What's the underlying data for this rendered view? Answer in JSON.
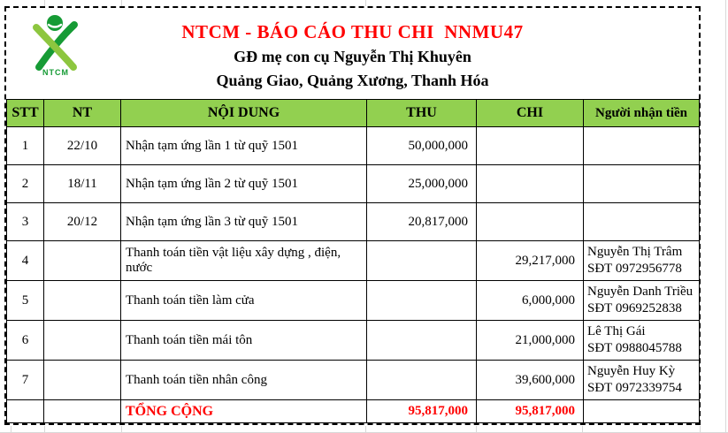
{
  "logo": {
    "label": "NTCM",
    "green_dark": "#169b35",
    "green_light": "#8dc63f"
  },
  "header": {
    "title": "NTCM - BÁO CÁO THU CHI  NNMU47",
    "subtitle_family": "GĐ mẹ con cụ Nguyễn Thị Khuyên",
    "subtitle_address": "Quảng Giao, Quảng Xương, Thanh Hóa"
  },
  "colors": {
    "header_green": "#92d050",
    "accent_red": "#ff0000"
  },
  "table": {
    "columns": [
      "STT",
      "NT",
      "NỘI DUNG",
      "THU",
      "CHI",
      "Người nhận tiền"
    ],
    "rows": [
      {
        "stt": "1",
        "nt": "22/10",
        "noi_dung": "Nhận tạm ứng lần 1 từ quỹ 1501",
        "thu": "50,000,000",
        "chi": "",
        "recipient_name": "",
        "recipient_phone": ""
      },
      {
        "stt": "2",
        "nt": "18/11",
        "noi_dung": "Nhận tạm ứng lần 2 từ quỹ 1501",
        "thu": "25,000,000",
        "chi": "",
        "recipient_name": "",
        "recipient_phone": ""
      },
      {
        "stt": "3",
        "nt": "20/12",
        "noi_dung": "Nhận tạm ứng lần 3 từ quỹ 1501",
        "thu": "20,817,000",
        "chi": "",
        "recipient_name": "",
        "recipient_phone": ""
      },
      {
        "stt": "4",
        "nt": "",
        "noi_dung": "Thanh toán tiền vật liệu xây dựng , điện, nước",
        "thu": "",
        "chi": "29,217,000",
        "recipient_name": "Nguyễn Thị Trâm",
        "recipient_phone": "SĐT 0972956778"
      },
      {
        "stt": "5",
        "nt": "",
        "noi_dung": "Thanh toán tiền làm cửa",
        "thu": "",
        "chi": "6,000,000",
        "recipient_name": "Nguyễn Danh Triều",
        "recipient_phone": "SĐT 0969252838"
      },
      {
        "stt": "6",
        "nt": "",
        "noi_dung": "Thanh toán tiền mái tôn",
        "thu": "",
        "chi": "21,000,000",
        "recipient_name": "Lê Thị Gái",
        "recipient_phone": "SĐT 0988045788"
      },
      {
        "stt": "7",
        "nt": "",
        "noi_dung": "Thanh toán tiền nhân công",
        "thu": "",
        "chi": "39,600,000",
        "recipient_name": "Nguyễn Huy Kỳ",
        "recipient_phone": "SĐT 0972339754"
      }
    ],
    "total": {
      "label": "TỔNG CỘNG",
      "thu": "95,817,000",
      "chi": "95,817,000"
    }
  }
}
